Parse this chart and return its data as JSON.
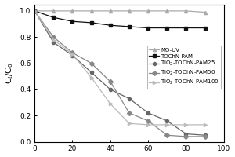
{
  "x": [
    0,
    10,
    20,
    30,
    40,
    50,
    60,
    70,
    80,
    90
  ],
  "series": {
    "MO-UV": [
      1.0,
      1.0,
      1.0,
      1.0,
      1.0,
      1.0,
      1.0,
      1.0,
      1.0,
      0.99
    ],
    "TOChN-PAM": [
      1.0,
      0.95,
      0.92,
      0.91,
      0.89,
      0.88,
      0.87,
      0.87,
      0.87,
      0.87
    ],
    "TiO2-TOChN-PAM25": [
      1.0,
      0.76,
      0.66,
      0.53,
      0.4,
      0.33,
      0.22,
      0.16,
      0.06,
      0.05
    ],
    "TiO2-TOChN-PAM50": [
      1.0,
      0.8,
      0.68,
      0.6,
      0.46,
      0.22,
      0.16,
      0.05,
      0.04,
      0.04
    ],
    "TiO2-TOChN-PAM100": [
      1.0,
      0.78,
      0.67,
      0.49,
      0.29,
      0.14,
      0.13,
      0.13,
      0.13,
      0.13
    ]
  },
  "colors": {
    "MO-UV": "#aaaaaa",
    "TOChN-PAM": "#111111",
    "TiO2-TOChN-PAM25": "#666666",
    "TiO2-TOChN-PAM50": "#888888",
    "TiO2-TOChN-PAM100": "#bbbbbb"
  },
  "markers": {
    "MO-UV": "^",
    "TOChN-PAM": "s",
    "TiO2-TOChN-PAM25": "o",
    "TiO2-TOChN-PAM50": "D",
    "TiO2-TOChN-PAM100": ">"
  },
  "legend_labels": {
    "MO-UV": "MO-UV",
    "TOChN-PAM": "TOChN-PAM",
    "TiO2-TOChN-PAM25": "TiO$_2$-TOChN-PAM25",
    "TiO2-TOChN-PAM50": "TiO$_2$-TOChN-PAM50",
    "TiO2-TOChN-PAM100": "TiO$_2$-TOChN-PAM100"
  },
  "ylabel": "C$_t$/C$_0$",
  "xlim": [
    0,
    100
  ],
  "ylim": [
    0.0,
    1.05
  ],
  "xticks": [
    0,
    20,
    40,
    60,
    80,
    100
  ],
  "yticks": [
    0.0,
    0.2,
    0.4,
    0.6,
    0.8,
    1.0
  ],
  "legend_fontsize": 5.0,
  "axis_fontsize": 7.5,
  "tick_fontsize": 6.5,
  "linewidth": 0.9,
  "markersize": 3.0,
  "figsize": [
    3.0,
    2.0
  ],
  "dpi": 100
}
